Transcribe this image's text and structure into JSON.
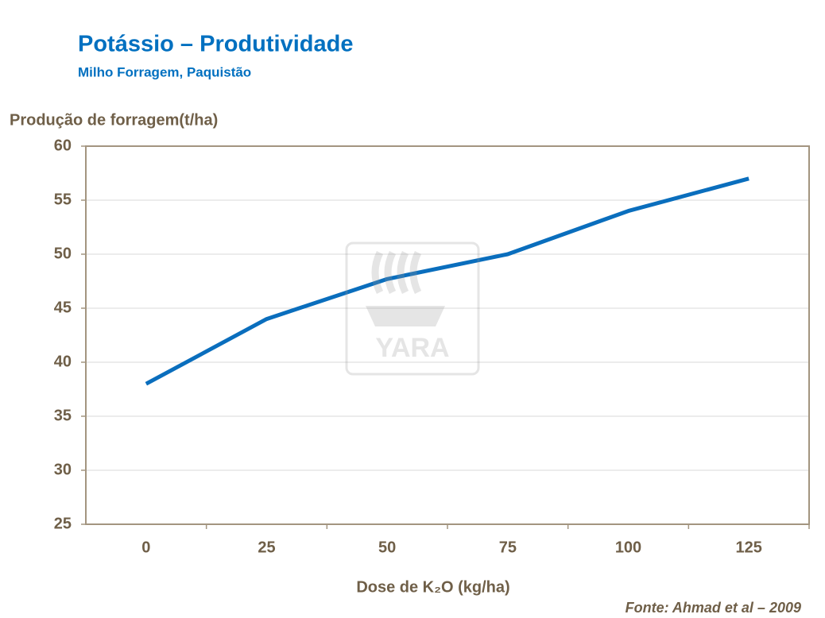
{
  "chart_data": {
    "type": "line",
    "title": "Potássio – Produtividade",
    "subtitle": "Milho Forragem, Paquistão",
    "y_axis_label": "Produção de forragem(t/ha)",
    "x_axis_label": "Dose de K₂O (kg/ha)",
    "source": "Fonte:  Ahmad et al – 2009",
    "watermark": "YARA",
    "categories": [
      "0",
      "25",
      "50",
      "75",
      "100",
      "125"
    ],
    "series": [
      {
        "name": "Produção de forragem",
        "color": "#0a6ebd",
        "values": [
          38,
          44,
          47.7,
          50,
          54,
          57
        ]
      }
    ],
    "ylim": [
      25,
      60
    ],
    "yticks": [
      25,
      30,
      35,
      40,
      45,
      50,
      55,
      60
    ],
    "grid": true
  }
}
